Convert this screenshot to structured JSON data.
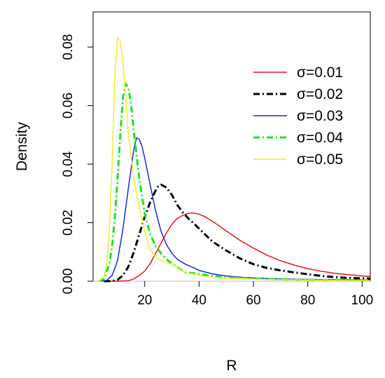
{
  "chart_data": {
    "type": "line",
    "title": "",
    "xlabel": "R",
    "ylabel": "Density",
    "xlim": [
      1,
      103
    ],
    "ylim": [
      0,
      0.092
    ],
    "x_ticks": [
      20,
      40,
      60,
      80,
      100
    ],
    "y_ticks": [
      0.0,
      0.02,
      0.04,
      0.06,
      0.08
    ],
    "x_tick_labels": [
      "20",
      "40",
      "60",
      "80",
      "100"
    ],
    "y_tick_labels": [
      "0.00",
      "0.02",
      "0.04",
      "0.06",
      "0.08"
    ],
    "grid": false,
    "legend_position": "top-right",
    "series": [
      {
        "name": "σ=0.01",
        "color": "#e8141e",
        "dash": "solid",
        "points": [
          [
            5,
            0
          ],
          [
            10,
            0
          ],
          [
            14,
            0.0002
          ],
          [
            16,
            0.0008
          ],
          [
            18,
            0.002
          ],
          [
            20,
            0.0035
          ],
          [
            22,
            0.006
          ],
          [
            24,
            0.0095
          ],
          [
            26,
            0.013
          ],
          [
            28,
            0.0165
          ],
          [
            30,
            0.0195
          ],
          [
            32,
            0.0215
          ],
          [
            34,
            0.0225
          ],
          [
            36,
            0.0232
          ],
          [
            38,
            0.0233
          ],
          [
            40,
            0.0229
          ],
          [
            42,
            0.0221
          ],
          [
            44,
            0.021
          ],
          [
            46,
            0.0198
          ],
          [
            48,
            0.0185
          ],
          [
            50,
            0.0172
          ],
          [
            55,
            0.014
          ],
          [
            60,
            0.0113
          ],
          [
            65,
            0.0089
          ],
          [
            70,
            0.007
          ],
          [
            75,
            0.0055
          ],
          [
            80,
            0.0043
          ],
          [
            85,
            0.0034
          ],
          [
            90,
            0.0027
          ],
          [
            95,
            0.0022
          ],
          [
            100,
            0.0018
          ],
          [
            103,
            0.0016
          ]
        ]
      },
      {
        "name": "σ=0.02",
        "color": "#000000",
        "dash": "dashdot",
        "points": [
          [
            5,
            0
          ],
          [
            8,
            0.0001
          ],
          [
            10,
            0.0005
          ],
          [
            12,
            0.002
          ],
          [
            14,
            0.005
          ],
          [
            16,
            0.01
          ],
          [
            18,
            0.016
          ],
          [
            20,
            0.022
          ],
          [
            22,
            0.027
          ],
          [
            24,
            0.031
          ],
          [
            25,
            0.0325
          ],
          [
            26,
            0.033
          ],
          [
            28,
            0.032
          ],
          [
            30,
            0.0295
          ],
          [
            32,
            0.026
          ],
          [
            34,
            0.0235
          ],
          [
            36,
            0.0215
          ],
          [
            38,
            0.0198
          ],
          [
            40,
            0.018
          ],
          [
            45,
            0.0135
          ],
          [
            50,
            0.0105
          ],
          [
            55,
            0.0078
          ],
          [
            60,
            0.0058
          ],
          [
            65,
            0.0045
          ],
          [
            70,
            0.0037
          ],
          [
            75,
            0.003
          ],
          [
            80,
            0.0024
          ],
          [
            85,
            0.0018
          ],
          [
            90,
            0.0014
          ],
          [
            95,
            0.0011
          ],
          [
            100,
            0.001
          ],
          [
            103,
            0.0009
          ]
        ]
      },
      {
        "name": "σ=0.03",
        "color": "#1a28e0",
        "dash": "solid",
        "points": [
          [
            4,
            0
          ],
          [
            6,
            0.0003
          ],
          [
            8,
            0.002
          ],
          [
            10,
            0.007
          ],
          [
            12,
            0.018
          ],
          [
            14,
            0.032
          ],
          [
            16,
            0.045
          ],
          [
            17,
            0.049
          ],
          [
            18,
            0.0485
          ],
          [
            19,
            0.046
          ],
          [
            20,
            0.042
          ],
          [
            22,
            0.033
          ],
          [
            24,
            0.024
          ],
          [
            26,
            0.017
          ],
          [
            28,
            0.0125
          ],
          [
            30,
            0.0095
          ],
          [
            32,
            0.0075
          ],
          [
            35,
            0.0058
          ],
          [
            38,
            0.0046
          ],
          [
            40,
            0.0037
          ],
          [
            45,
            0.0025
          ],
          [
            50,
            0.0018
          ],
          [
            55,
            0.0014
          ],
          [
            60,
            0.0011
          ],
          [
            70,
            0.0008
          ],
          [
            80,
            0.0006
          ],
          [
            90,
            0.0005
          ],
          [
            103,
            0.0004
          ]
        ]
      },
      {
        "name": "σ=0.04",
        "color": "#16e81e",
        "dash": "dashdot",
        "points": [
          [
            3,
            0
          ],
          [
            5,
            0.0008
          ],
          [
            7,
            0.006
          ],
          [
            8,
            0.012
          ],
          [
            9,
            0.022
          ],
          [
            10,
            0.035
          ],
          [
            11,
            0.05
          ],
          [
            12,
            0.063
          ],
          [
            13,
            0.0675
          ],
          [
            14,
            0.066
          ],
          [
            15,
            0.06
          ],
          [
            16,
            0.051
          ],
          [
            18,
            0.035
          ],
          [
            20,
            0.023
          ],
          [
            22,
            0.016
          ],
          [
            24,
            0.012
          ],
          [
            26,
            0.0095
          ],
          [
            28,
            0.0075
          ],
          [
            30,
            0.006
          ],
          [
            32,
            0.0048
          ],
          [
            35,
            0.003
          ],
          [
            40,
            0.0025
          ],
          [
            45,
            0.0018
          ],
          [
            50,
            0.0013
          ],
          [
            60,
            0.0009
          ],
          [
            70,
            0.0006
          ],
          [
            80,
            0.0005
          ],
          [
            90,
            0.0004
          ],
          [
            103,
            0.0003
          ]
        ]
      },
      {
        "name": "σ=0.05",
        "color": "#f5ec28",
        "dash": "solid",
        "points": [
          [
            3,
            0
          ],
          [
            5,
            0.0015
          ],
          [
            6,
            0.006
          ],
          [
            7,
            0.018
          ],
          [
            8,
            0.04
          ],
          [
            9,
            0.07
          ],
          [
            10,
            0.0832
          ],
          [
            11,
            0.082
          ],
          [
            12,
            0.075
          ],
          [
            13,
            0.063
          ],
          [
            14,
            0.05
          ],
          [
            16,
            0.035
          ],
          [
            18,
            0.025
          ],
          [
            20,
            0.017
          ],
          [
            22,
            0.011
          ],
          [
            24,
            0.008
          ],
          [
            26,
            0.0072
          ],
          [
            28,
            0.0065
          ],
          [
            30,
            0.0058
          ],
          [
            32,
            0.0048
          ],
          [
            34,
            0.0035
          ],
          [
            36,
            0.0028
          ],
          [
            40,
            0.002
          ],
          [
            45,
            0.0014
          ],
          [
            50,
            0.001
          ],
          [
            60,
            0.0007
          ],
          [
            70,
            0.0005
          ],
          [
            80,
            0.0004
          ],
          [
            90,
            0.0003
          ],
          [
            103,
            0.0002
          ]
        ]
      }
    ]
  }
}
